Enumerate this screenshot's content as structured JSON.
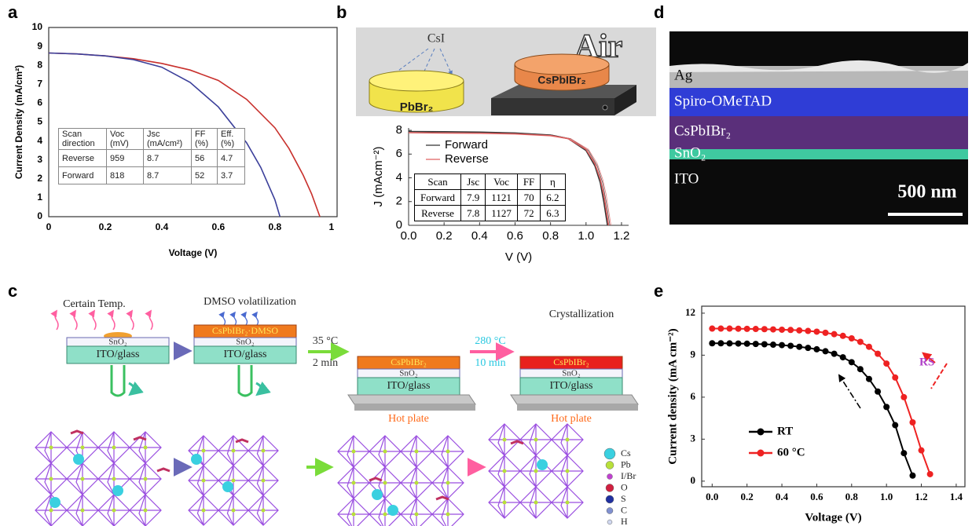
{
  "panel_labels": [
    "a",
    "b",
    "c",
    "d",
    "e"
  ],
  "chart_data": [
    {
      "type": "line",
      "x_label": "Voltage (V)",
      "y_label": "Current Density (mA/cm²)",
      "xlim": [
        0,
        1.02
      ],
      "ylim": [
        0,
        10
      ],
      "xticks": [
        0,
        0.2,
        0.4,
        0.6,
        0.8,
        1
      ],
      "yticks": [
        0,
        1,
        2,
        3,
        4,
        5,
        6,
        7,
        8,
        9,
        10
      ],
      "series": [
        {
          "color": "#c8302c",
          "x": [
            0,
            0.1,
            0.2,
            0.3,
            0.4,
            0.5,
            0.6,
            0.7,
            0.8,
            0.85,
            0.9,
            0.93,
            0.959
          ],
          "values": [
            8.65,
            8.6,
            8.5,
            8.35,
            8.1,
            7.75,
            7.2,
            6.2,
            4.7,
            3.6,
            2.2,
            1.2,
            0
          ]
        },
        {
          "color": "#3b3f9a",
          "x": [
            0,
            0.1,
            0.2,
            0.3,
            0.4,
            0.5,
            0.6,
            0.7,
            0.75,
            0.8,
            0.818
          ],
          "values": [
            8.65,
            8.6,
            8.5,
            8.3,
            7.9,
            7.1,
            5.8,
            3.9,
            2.6,
            0.9,
            0
          ]
        }
      ],
      "table": {
        "header": [
          "Scan direction",
          "Voc (mV)",
          "Jsc (mA/cm²)",
          "FF (%)",
          "Eff. (%)"
        ],
        "rows": [
          [
            "Reverse",
            "959",
            "8.7",
            "56",
            "4.7"
          ],
          [
            "Forward",
            "818",
            "8.7",
            "52",
            "3.7"
          ]
        ]
      }
    },
    {
      "type": "line",
      "x_label": "V (V)",
      "y_label": "J (mAcm⁻²)",
      "xlim": [
        0,
        1.24
      ],
      "ylim": [
        0,
        8.2
      ],
      "xticks": [
        {
          "value": 0,
          "label": "0.0"
        },
        0.2,
        0.4,
        0.6,
        0.8,
        {
          "value": 1,
          "label": "1.0"
        },
        1.2
      ],
      "yticks": [
        0,
        2,
        4,
        6,
        8
      ],
      "legend": "upper left",
      "series": [
        {
          "name": "Forward",
          "color": "#333333",
          "x": [
            0,
            0.2,
            0.4,
            0.6,
            0.8,
            0.9,
            1.0,
            1.05,
            1.08,
            1.1,
            1.121
          ],
          "values": [
            7.9,
            7.88,
            7.85,
            7.78,
            7.6,
            7.3,
            6.3,
            5.0,
            3.6,
            2.0,
            0
          ]
        },
        {
          "name": "Reverse",
          "color": "#e06060",
          "x": [
            0,
            0.2,
            0.4,
            0.6,
            0.8,
            0.9,
            1.0,
            1.05,
            1.08,
            1.1,
            1.127
          ],
          "values": [
            7.8,
            7.78,
            7.76,
            7.7,
            7.55,
            7.3,
            6.4,
            5.2,
            3.9,
            2.6,
            0
          ]
        }
      ],
      "table": {
        "header": [
          "Scan",
          "Jsc",
          "Voc",
          "FF",
          "η"
        ],
        "rows": [
          [
            "Forward",
            "7.9",
            "1121",
            "70",
            "6.2"
          ],
          [
            "Reverse",
            "7.8",
            "1127",
            "72",
            "6.3"
          ]
        ]
      }
    },
    {
      "type": "line",
      "x_label": "Voltage (V)",
      "y_label": "Current density (mA cm⁻²)",
      "xlim": [
        -0.06,
        1.45
      ],
      "ylim": [
        -0.4,
        12.5
      ],
      "xticks": [
        {
          "value": 0,
          "label": "0.0"
        },
        0.2,
        0.4,
        0.6,
        0.8,
        {
          "value": 1,
          "label": "1.0"
        },
        1.2,
        1.4
      ],
      "yticks": [
        0,
        3,
        6,
        9,
        12
      ],
      "legend": "lower left",
      "markers": true,
      "annotation": "RS",
      "series": [
        {
          "name": "RT",
          "color": "#000000",
          "x": [
            0,
            0.05,
            0.1,
            0.15,
            0.2,
            0.25,
            0.3,
            0.35,
            0.4,
            0.45,
            0.5,
            0.55,
            0.6,
            0.65,
            0.7,
            0.75,
            0.8,
            0.85,
            0.9,
            0.95,
            1.0,
            1.05,
            1.1,
            1.15
          ],
          "values": [
            9.85,
            9.85,
            9.84,
            9.83,
            9.82,
            9.8,
            9.78,
            9.75,
            9.72,
            9.67,
            9.6,
            9.52,
            9.42,
            9.28,
            9.1,
            8.85,
            8.5,
            8.0,
            7.3,
            6.4,
            5.3,
            4.0,
            2.0,
            0.4
          ]
        },
        {
          "name": "60 °C",
          "color": "#ee2222",
          "x": [
            0,
            0.05,
            0.1,
            0.15,
            0.2,
            0.25,
            0.3,
            0.35,
            0.4,
            0.45,
            0.5,
            0.55,
            0.6,
            0.65,
            0.7,
            0.75,
            0.8,
            0.85,
            0.9,
            0.95,
            1.0,
            1.05,
            1.1,
            1.15,
            1.2,
            1.25
          ],
          "values": [
            10.9,
            10.9,
            10.9,
            10.89,
            10.88,
            10.87,
            10.86,
            10.84,
            10.82,
            10.8,
            10.77,
            10.73,
            10.68,
            10.6,
            10.5,
            10.38,
            10.2,
            9.95,
            9.6,
            9.1,
            8.4,
            7.4,
            6.0,
            4.2,
            2.2,
            0.5
          ]
        }
      ]
    }
  ],
  "panel_b_diagram": {
    "source": "CsI",
    "atmosphere": "Air",
    "precursor": "PbBr₂",
    "product": "CsPbIBr₂"
  },
  "panel_c": {
    "captions": [
      "Certain Temp.",
      "DMSO volatilization",
      "Crystallization"
    ],
    "steps": [
      {
        "top": "35 °C",
        "bottom": "2 min"
      },
      {
        "top": "280 °C",
        "bottom": "10 min"
      }
    ],
    "stacks": [
      {
        "layer": "SnO₂",
        "substrate": "ITO/glass"
      },
      {
        "film": "CsPbIBr₂·DMSO",
        "layer": "SnO₂",
        "substrate": "ITO/glass"
      },
      {
        "film": "CsPbIBr₂",
        "layer": "SnO₂",
        "substrate": "ITO/glass",
        "plate": "Hot plate"
      },
      {
        "film": "CsPbIBr₂",
        "layer": "SnO₂",
        "substrate": "ITO/glass",
        "plate": "Hot plate"
      }
    ],
    "legend": [
      "Cs",
      "Pb",
      "I/Br",
      "O",
      "S",
      "C",
      "H"
    ]
  },
  "panel_d": {
    "layers": [
      "Ag",
      "Spiro-OMeTAD",
      "CsPbIBr₂",
      "SnO₂",
      "ITO"
    ],
    "scale_bar": "500 nm"
  }
}
